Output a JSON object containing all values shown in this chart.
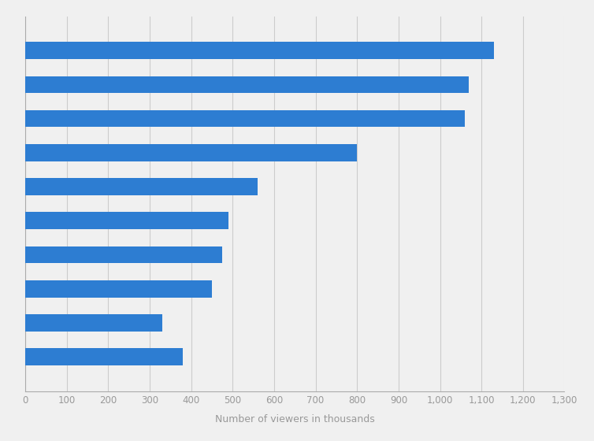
{
  "values": [
    1130,
    1070,
    1060,
    800,
    560,
    490,
    475,
    450,
    330,
    380
  ],
  "bar_color": "#2d7dd2",
  "background_color": "#f0f0f0",
  "plot_bg_color": "#f0f0f0",
  "xlabel": "Number of viewers in thousands",
  "xlim": [
    0,
    1300
  ],
  "xticks": [
    0,
    100,
    200,
    300,
    400,
    500,
    600,
    700,
    800,
    900,
    1000,
    1100,
    1200,
    1300
  ],
  "xtick_labels": [
    "0",
    "100",
    "200",
    "300",
    "400",
    "500",
    "600",
    "700",
    "800",
    "900",
    "1,000",
    "1,100",
    "1,200",
    "1,300"
  ],
  "bar_height": 0.5,
  "grid_color": "#cccccc",
  "xlabel_fontsize": 9,
  "xtick_fontsize": 8.5
}
